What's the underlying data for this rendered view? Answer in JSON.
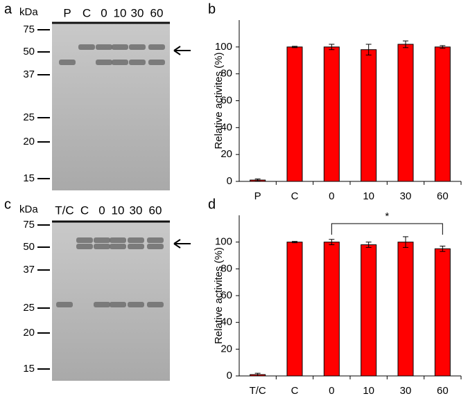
{
  "panel_labels": [
    "a",
    "b",
    "c",
    "d"
  ],
  "gels": [
    {
      "unit": "kDa",
      "markers": [
        "75",
        "50",
        "37",
        "25",
        "20",
        "15"
      ],
      "lanes": [
        "P",
        "C",
        "0",
        "10",
        "30",
        "60"
      ]
    },
    {
      "unit": "kDa",
      "markers": [
        "75",
        "50",
        "37",
        "25",
        "20",
        "15"
      ],
      "lanes": [
        "T/C",
        "C",
        "0",
        "10",
        "30",
        "60"
      ]
    }
  ],
  "chart_data": [
    {
      "type": "bar",
      "ylabel": "Relative activites (%)",
      "categories": [
        "P",
        "C",
        "0",
        "10",
        "30",
        "60"
      ],
      "values": [
        1,
        100,
        100,
        98,
        102,
        100
      ],
      "errors": [
        0.8,
        0.5,
        2,
        4,
        2.5,
        1
      ],
      "color": "#ff0000",
      "ylim": [
        0,
        120
      ],
      "yticks": [
        0,
        20,
        40,
        60,
        80,
        100
      ]
    },
    {
      "type": "bar",
      "ylabel": "Relative activites (%)",
      "categories": [
        "T/C",
        "C",
        "0",
        "10",
        "30",
        "60"
      ],
      "values": [
        1,
        100,
        100,
        98,
        100,
        95
      ],
      "errors": [
        1,
        0.5,
        2,
        2,
        4,
        2
      ],
      "color": "#ff0000",
      "ylim": [
        0,
        120
      ],
      "yticks": [
        0,
        20,
        40,
        60,
        80,
        100
      ],
      "annotations": [
        {
          "text": "*",
          "between": [
            "0",
            "60"
          ]
        }
      ]
    }
  ]
}
